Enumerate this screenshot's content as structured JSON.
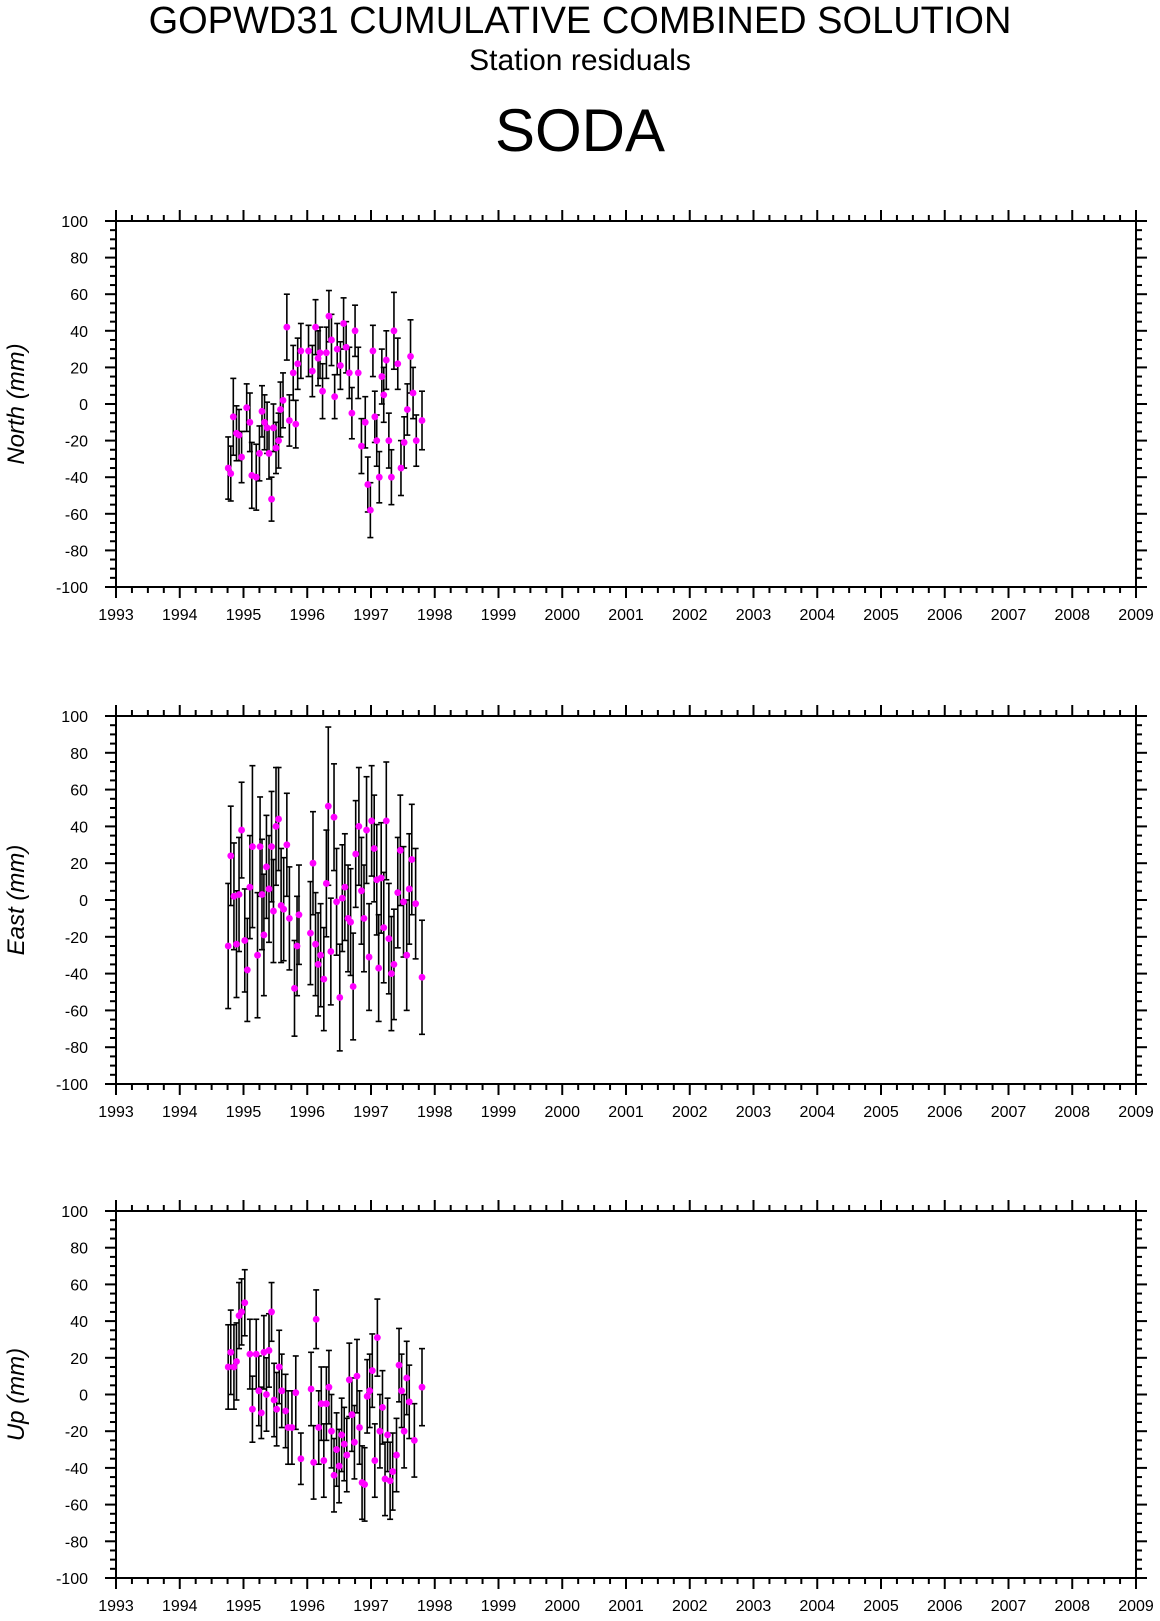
{
  "header": {
    "title": "GOPWD31 CUMULATIVE COMBINED SOLUTION",
    "subtitle": "Station residuals",
    "station": "SODA"
  },
  "colors": {
    "point": "#ff00ff",
    "errorbar": "#000000",
    "axis": "#000000"
  },
  "chart_data": [
    {
      "type": "scatter",
      "ylabel": "North (mm)",
      "xlim": [
        1993,
        2009
      ],
      "ylim": [
        -100,
        100
      ],
      "xticks": [
        1993,
        1994,
        1995,
        1996,
        1997,
        1998,
        1999,
        2000,
        2001,
        2002,
        2003,
        2004,
        2005,
        2006,
        2007,
        2008,
        2009
      ],
      "yticks": [
        -100,
        -80,
        -60,
        -40,
        -20,
        0,
        20,
        40,
        60,
        80,
        100
      ],
      "points": [
        {
          "x": 1994.76,
          "y": -35,
          "err": 17
        },
        {
          "x": 1994.8,
          "y": -38,
          "err": 15
        },
        {
          "x": 1994.84,
          "y": -7,
          "err": 21
        },
        {
          "x": 1994.89,
          "y": -16,
          "err": 15
        },
        {
          "x": 1994.93,
          "y": -17,
          "err": 14
        },
        {
          "x": 1994.97,
          "y": -29,
          "err": 14
        },
        {
          "x": 1995.05,
          "y": -2,
          "err": 13
        },
        {
          "x": 1995.1,
          "y": -10,
          "err": 16
        },
        {
          "x": 1995.13,
          "y": -39,
          "err": 18
        },
        {
          "x": 1995.2,
          "y": -40,
          "err": 18
        },
        {
          "x": 1995.25,
          "y": -27,
          "err": 15
        },
        {
          "x": 1995.29,
          "y": -4,
          "err": 14
        },
        {
          "x": 1995.33,
          "y": -10,
          "err": 15
        },
        {
          "x": 1995.37,
          "y": -13,
          "err": 14
        },
        {
          "x": 1995.4,
          "y": -27,
          "err": 14
        },
        {
          "x": 1995.44,
          "y": -52,
          "err": 12
        },
        {
          "x": 1995.47,
          "y": -13,
          "err": 13
        },
        {
          "x": 1995.51,
          "y": -24,
          "err": 14
        },
        {
          "x": 1995.55,
          "y": -20,
          "err": 15
        },
        {
          "x": 1995.58,
          "y": -3,
          "err": 15
        },
        {
          "x": 1995.62,
          "y": 2,
          "err": 15
        },
        {
          "x": 1995.68,
          "y": 42,
          "err": 18
        },
        {
          "x": 1995.72,
          "y": -9,
          "err": 14
        },
        {
          "x": 1995.78,
          "y": 17,
          "err": 15
        },
        {
          "x": 1995.82,
          "y": -11,
          "err": 13
        },
        {
          "x": 1995.85,
          "y": 22,
          "err": 14
        },
        {
          "x": 1995.9,
          "y": 29,
          "err": 15
        },
        {
          "x": 1996.02,
          "y": 29,
          "err": 14
        },
        {
          "x": 1996.08,
          "y": 18,
          "err": 14
        },
        {
          "x": 1996.13,
          "y": 42,
          "err": 15
        },
        {
          "x": 1996.17,
          "y": 25,
          "err": 15
        },
        {
          "x": 1996.2,
          "y": 28,
          "err": 14
        },
        {
          "x": 1996.24,
          "y": 7,
          "err": 15
        },
        {
          "x": 1996.3,
          "y": 28,
          "err": 14
        },
        {
          "x": 1996.34,
          "y": 48,
          "err": 14
        },
        {
          "x": 1996.38,
          "y": 35,
          "err": 14
        },
        {
          "x": 1996.43,
          "y": 4,
          "err": 12
        },
        {
          "x": 1996.47,
          "y": 30,
          "err": 14
        },
        {
          "x": 1996.52,
          "y": 21,
          "err": 13
        },
        {
          "x": 1996.57,
          "y": 44,
          "err": 14
        },
        {
          "x": 1996.61,
          "y": 31,
          "err": 14
        },
        {
          "x": 1996.66,
          "y": 17,
          "err": 14
        },
        {
          "x": 1996.7,
          "y": -5,
          "err": 14
        },
        {
          "x": 1996.75,
          "y": 40,
          "err": 14
        },
        {
          "x": 1996.8,
          "y": 17,
          "err": 14
        },
        {
          "x": 1996.85,
          "y": -23,
          "err": 15
        },
        {
          "x": 1996.91,
          "y": -10,
          "err": 14
        },
        {
          "x": 1996.95,
          "y": -44,
          "err": 15
        },
        {
          "x": 1996.99,
          "y": -58,
          "err": 15
        },
        {
          "x": 1997.03,
          "y": 29,
          "err": 14
        },
        {
          "x": 1997.06,
          "y": -7,
          "err": 14
        },
        {
          "x": 1997.09,
          "y": -20,
          "err": 14
        },
        {
          "x": 1997.13,
          "y": -40,
          "err": 14
        },
        {
          "x": 1997.17,
          "y": 15,
          "err": 15
        },
        {
          "x": 1997.2,
          "y": 5,
          "err": 15
        },
        {
          "x": 1997.24,
          "y": 24,
          "err": 16
        },
        {
          "x": 1997.28,
          "y": -20,
          "err": 15
        },
        {
          "x": 1997.32,
          "y": -40,
          "err": 15
        },
        {
          "x": 1997.36,
          "y": 40,
          "err": 21
        },
        {
          "x": 1997.42,
          "y": 22,
          "err": 14
        },
        {
          "x": 1997.47,
          "y": -35,
          "err": 15
        },
        {
          "x": 1997.52,
          "y": -21,
          "err": 14
        },
        {
          "x": 1997.57,
          "y": -3,
          "err": 14
        },
        {
          "x": 1997.62,
          "y": 26,
          "err": 20
        },
        {
          "x": 1997.66,
          "y": 6,
          "err": 14
        },
        {
          "x": 1997.71,
          "y": -20,
          "err": 14
        },
        {
          "x": 1997.8,
          "y": -9,
          "err": 16
        }
      ]
    },
    {
      "type": "scatter",
      "ylabel": "East (mm)",
      "xlim": [
        1993,
        2009
      ],
      "ylim": [
        -100,
        100
      ],
      "xticks": [
        1993,
        1994,
        1995,
        1996,
        1997,
        1998,
        1999,
        2000,
        2001,
        2002,
        2003,
        2004,
        2005,
        2006,
        2007,
        2008,
        2009
      ],
      "yticks": [
        -100,
        -80,
        -60,
        -40,
        -20,
        0,
        20,
        40,
        60,
        80,
        100
      ],
      "points": [
        {
          "x": 1994.76,
          "y": -25,
          "err": 34
        },
        {
          "x": 1994.8,
          "y": 24,
          "err": 27
        },
        {
          "x": 1994.85,
          "y": 2,
          "err": 29
        },
        {
          "x": 1994.89,
          "y": -24,
          "err": 29
        },
        {
          "x": 1994.93,
          "y": 3,
          "err": 31
        },
        {
          "x": 1994.97,
          "y": 38,
          "err": 26
        },
        {
          "x": 1995.02,
          "y": -22,
          "err": 28
        },
        {
          "x": 1995.06,
          "y": -38,
          "err": 28
        },
        {
          "x": 1995.1,
          "y": 7,
          "err": 28
        },
        {
          "x": 1995.14,
          "y": 29,
          "err": 44
        },
        {
          "x": 1995.22,
          "y": -30,
          "err": 34
        },
        {
          "x": 1995.26,
          "y": 29,
          "err": 27
        },
        {
          "x": 1995.29,
          "y": 3,
          "err": 30
        },
        {
          "x": 1995.32,
          "y": -19,
          "err": 33
        },
        {
          "x": 1995.36,
          "y": 18,
          "err": 28
        },
        {
          "x": 1995.4,
          "y": 6,
          "err": 29
        },
        {
          "x": 1995.44,
          "y": 29,
          "err": 30
        },
        {
          "x": 1995.47,
          "y": -6,
          "err": 28
        },
        {
          "x": 1995.51,
          "y": 40,
          "err": 32
        },
        {
          "x": 1995.55,
          "y": 44,
          "err": 28
        },
        {
          "x": 1995.59,
          "y": -3,
          "err": 31
        },
        {
          "x": 1995.63,
          "y": -5,
          "err": 28
        },
        {
          "x": 1995.68,
          "y": 30,
          "err": 28
        },
        {
          "x": 1995.72,
          "y": -10,
          "err": 28
        },
        {
          "x": 1995.8,
          "y": -48,
          "err": 26
        },
        {
          "x": 1995.84,
          "y": -25,
          "err": 27
        },
        {
          "x": 1995.87,
          "y": -8,
          "err": 27
        },
        {
          "x": 1996.05,
          "y": -18,
          "err": 28
        },
        {
          "x": 1996.09,
          "y": 20,
          "err": 28
        },
        {
          "x": 1996.13,
          "y": -24,
          "err": 28
        },
        {
          "x": 1996.17,
          "y": -35,
          "err": 28
        },
        {
          "x": 1996.21,
          "y": -30,
          "err": 28
        },
        {
          "x": 1996.26,
          "y": -43,
          "err": 28
        },
        {
          "x": 1996.3,
          "y": 9,
          "err": 29
        },
        {
          "x": 1996.33,
          "y": 51,
          "err": 43
        },
        {
          "x": 1996.37,
          "y": -28,
          "err": 29
        },
        {
          "x": 1996.42,
          "y": 45,
          "err": 29
        },
        {
          "x": 1996.46,
          "y": -1,
          "err": 29
        },
        {
          "x": 1996.51,
          "y": -53,
          "err": 29
        },
        {
          "x": 1996.55,
          "y": 1,
          "err": 29
        },
        {
          "x": 1996.59,
          "y": 7,
          "err": 29
        },
        {
          "x": 1996.64,
          "y": -10,
          "err": 29
        },
        {
          "x": 1996.68,
          "y": -12,
          "err": 29
        },
        {
          "x": 1996.72,
          "y": -47,
          "err": 29
        },
        {
          "x": 1996.76,
          "y": 25,
          "err": 29
        },
        {
          "x": 1996.81,
          "y": 40,
          "err": 32
        },
        {
          "x": 1996.85,
          "y": 5,
          "err": 29
        },
        {
          "x": 1996.89,
          "y": -10,
          "err": 29
        },
        {
          "x": 1996.93,
          "y": 38,
          "err": 29
        },
        {
          "x": 1996.97,
          "y": -31,
          "err": 29
        },
        {
          "x": 1997.01,
          "y": 43,
          "err": 30
        },
        {
          "x": 1997.05,
          "y": 28,
          "err": 29
        },
        {
          "x": 1997.09,
          "y": 11,
          "err": 30
        },
        {
          "x": 1997.12,
          "y": -37,
          "err": 29
        },
        {
          "x": 1997.16,
          "y": 12,
          "err": 30
        },
        {
          "x": 1997.2,
          "y": -15,
          "err": 30
        },
        {
          "x": 1997.24,
          "y": 43,
          "err": 32
        },
        {
          "x": 1997.28,
          "y": -21,
          "err": 30
        },
        {
          "x": 1997.32,
          "y": -40,
          "err": 31
        },
        {
          "x": 1997.36,
          "y": -35,
          "err": 30
        },
        {
          "x": 1997.42,
          "y": 4,
          "err": 30
        },
        {
          "x": 1997.46,
          "y": 27,
          "err": 30
        },
        {
          "x": 1997.51,
          "y": -1,
          "err": 30
        },
        {
          "x": 1997.56,
          "y": -30,
          "err": 30
        },
        {
          "x": 1997.6,
          "y": 6,
          "err": 30
        },
        {
          "x": 1997.64,
          "y": 22,
          "err": 30
        },
        {
          "x": 1997.7,
          "y": -2,
          "err": 30
        },
        {
          "x": 1997.8,
          "y": -42,
          "err": 31
        }
      ]
    },
    {
      "type": "scatter",
      "ylabel": "Up (mm)",
      "xlim": [
        1993,
        2009
      ],
      "ylim": [
        -100,
        100
      ],
      "xticks": [
        1993,
        1994,
        1995,
        1996,
        1997,
        1998,
        1999,
        2000,
        2001,
        2002,
        2003,
        2004,
        2005,
        2006,
        2007,
        2008,
        2009
      ],
      "yticks": [
        -100,
        -80,
        -60,
        -40,
        -20,
        0,
        20,
        40,
        60,
        80,
        100
      ],
      "points": [
        {
          "x": 1994.76,
          "y": 15,
          "err": 23
        },
        {
          "x": 1994.8,
          "y": 23,
          "err": 23
        },
        {
          "x": 1994.85,
          "y": 15,
          "err": 23
        },
        {
          "x": 1994.89,
          "y": 18,
          "err": 21
        },
        {
          "x": 1994.93,
          "y": 43,
          "err": 18
        },
        {
          "x": 1994.97,
          "y": 45,
          "err": 18
        },
        {
          "x": 1995.02,
          "y": 50,
          "err": 18
        },
        {
          "x": 1995.1,
          "y": 22,
          "err": 19
        },
        {
          "x": 1995.14,
          "y": -8,
          "err": 18
        },
        {
          "x": 1995.2,
          "y": 22,
          "err": 19
        },
        {
          "x": 1995.24,
          "y": 2,
          "err": 19
        },
        {
          "x": 1995.28,
          "y": -10,
          "err": 14
        },
        {
          "x": 1995.32,
          "y": 23,
          "err": 20
        },
        {
          "x": 1995.36,
          "y": 0,
          "err": 20
        },
        {
          "x": 1995.4,
          "y": 24,
          "err": 20
        },
        {
          "x": 1995.44,
          "y": 45,
          "err": 16
        },
        {
          "x": 1995.48,
          "y": -3,
          "err": 20
        },
        {
          "x": 1995.52,
          "y": -8,
          "err": 20
        },
        {
          "x": 1995.56,
          "y": 15,
          "err": 20
        },
        {
          "x": 1995.6,
          "y": 2,
          "err": 20
        },
        {
          "x": 1995.66,
          "y": -9,
          "err": 20
        },
        {
          "x": 1995.7,
          "y": -18,
          "err": 20
        },
        {
          "x": 1995.76,
          "y": -18,
          "err": 20
        },
        {
          "x": 1995.82,
          "y": 1,
          "err": 20
        },
        {
          "x": 1995.9,
          "y": -35,
          "err": 14
        },
        {
          "x": 1996.06,
          "y": 3,
          "err": 20
        },
        {
          "x": 1996.1,
          "y": -37,
          "err": 20
        },
        {
          "x": 1996.14,
          "y": 41,
          "err": 16
        },
        {
          "x": 1996.18,
          "y": -18,
          "err": 20
        },
        {
          "x": 1996.22,
          "y": -5,
          "err": 20
        },
        {
          "x": 1996.26,
          "y": -36,
          "err": 20
        },
        {
          "x": 1996.3,
          "y": -5,
          "err": 20
        },
        {
          "x": 1996.34,
          "y": 4,
          "err": 20
        },
        {
          "x": 1996.38,
          "y": -20,
          "err": 20
        },
        {
          "x": 1996.42,
          "y": -44,
          "err": 20
        },
        {
          "x": 1996.46,
          "y": -30,
          "err": 20
        },
        {
          "x": 1996.5,
          "y": -39,
          "err": 20
        },
        {
          "x": 1996.54,
          "y": -22,
          "err": 20
        },
        {
          "x": 1996.58,
          "y": -27,
          "err": 20
        },
        {
          "x": 1996.62,
          "y": -33,
          "err": 20
        },
        {
          "x": 1996.66,
          "y": 8,
          "err": 20
        },
        {
          "x": 1996.7,
          "y": -11,
          "err": 20
        },
        {
          "x": 1996.74,
          "y": -26,
          "err": 20
        },
        {
          "x": 1996.78,
          "y": 10,
          "err": 20
        },
        {
          "x": 1996.82,
          "y": -18,
          "err": 20
        },
        {
          "x": 1996.86,
          "y": -48,
          "err": 20
        },
        {
          "x": 1996.9,
          "y": -49,
          "err": 20
        },
        {
          "x": 1996.94,
          "y": -1,
          "err": 20
        },
        {
          "x": 1996.98,
          "y": 2,
          "err": 20
        },
        {
          "x": 1997.02,
          "y": 13,
          "err": 20
        },
        {
          "x": 1997.06,
          "y": -36,
          "err": 20
        },
        {
          "x": 1997.1,
          "y": 31,
          "err": 21
        },
        {
          "x": 1997.14,
          "y": -20,
          "err": 20
        },
        {
          "x": 1997.18,
          "y": -7,
          "err": 20
        },
        {
          "x": 1997.22,
          "y": -46,
          "err": 20
        },
        {
          "x": 1997.26,
          "y": -22,
          "err": 20
        },
        {
          "x": 1997.3,
          "y": -47,
          "err": 21
        },
        {
          "x": 1997.34,
          "y": -42,
          "err": 21
        },
        {
          "x": 1997.4,
          "y": -33,
          "err": 20
        },
        {
          "x": 1997.44,
          "y": 16,
          "err": 20
        },
        {
          "x": 1997.48,
          "y": 2,
          "err": 20
        },
        {
          "x": 1997.52,
          "y": -20,
          "err": 20
        },
        {
          "x": 1997.56,
          "y": 9,
          "err": 20
        },
        {
          "x": 1997.6,
          "y": -4,
          "err": 20
        },
        {
          "x": 1997.68,
          "y": -25,
          "err": 20
        },
        {
          "x": 1997.8,
          "y": 4,
          "err": 21
        }
      ]
    }
  ]
}
